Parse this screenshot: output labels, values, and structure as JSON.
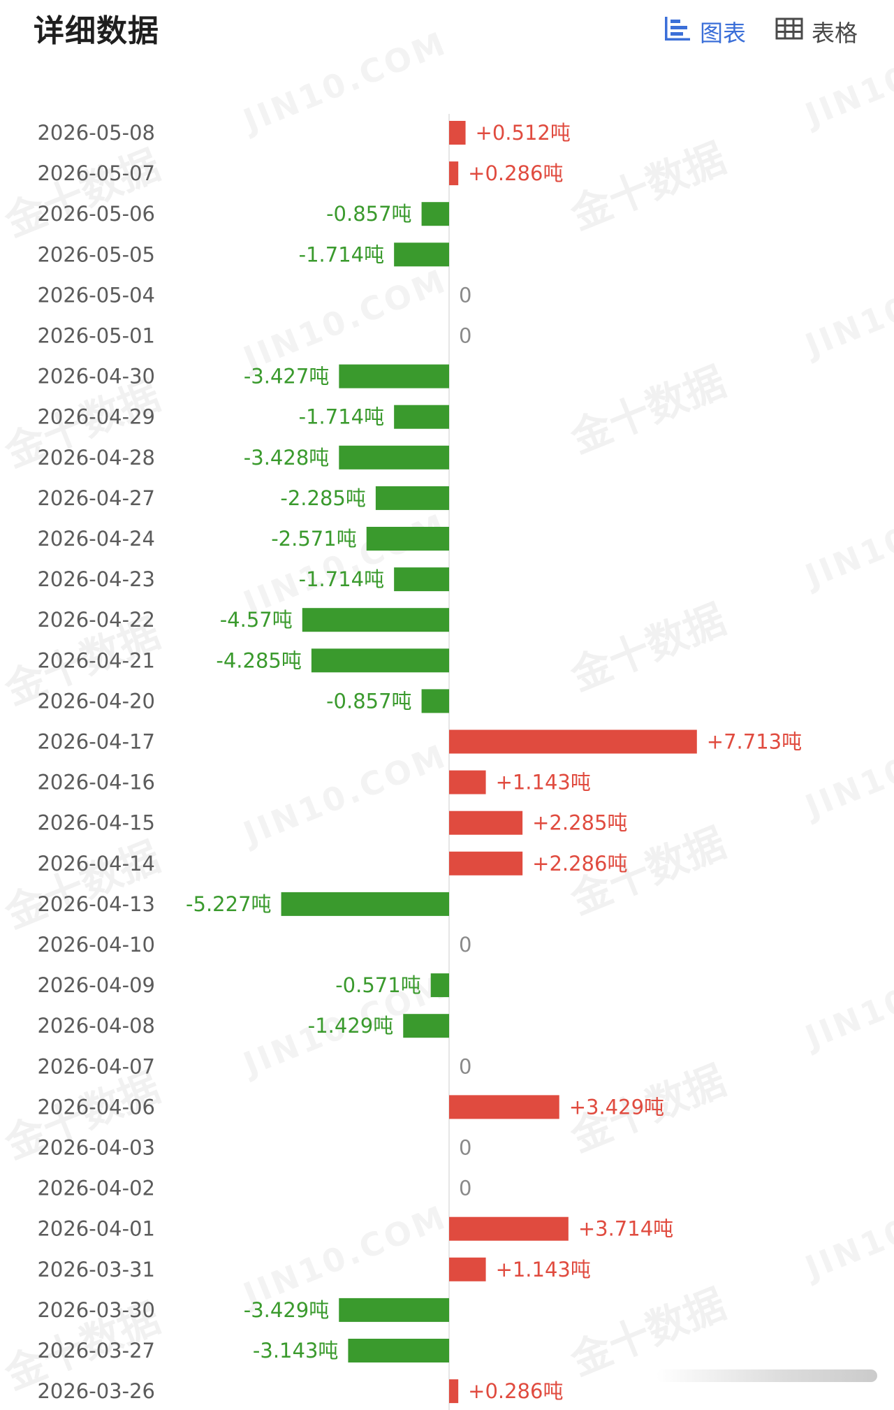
{
  "header": {
    "title": "详细数据",
    "chart_label": "图表",
    "table_label": "表格"
  },
  "colors": {
    "positive": "#e04b3f",
    "negative": "#3a9a2d",
    "axis": "#e6e6e6",
    "date_text": "#5b5b5b",
    "zero_text": "#8a8a8a",
    "accent": "#3b6fd8"
  },
  "watermarks": {
    "domain": "JIN10.COM",
    "brand": "金十数据",
    "short": "JIN10"
  },
  "chart_data": {
    "type": "bar",
    "orientation": "horizontal",
    "unit": "吨",
    "xlim": [
      -8,
      8
    ],
    "categories": [
      "2026-05-08",
      "2026-05-07",
      "2026-05-06",
      "2026-05-05",
      "2026-05-04",
      "2026-05-01",
      "2026-04-30",
      "2026-04-29",
      "2026-04-28",
      "2026-04-27",
      "2026-04-24",
      "2026-04-23",
      "2026-04-22",
      "2026-04-21",
      "2026-04-20",
      "2026-04-17",
      "2026-04-16",
      "2026-04-15",
      "2026-04-14",
      "2026-04-13",
      "2026-04-10",
      "2026-04-09",
      "2026-04-08",
      "2026-04-07",
      "2026-04-06",
      "2026-04-03",
      "2026-04-02",
      "2026-04-01",
      "2026-03-31",
      "2026-03-30",
      "2026-03-27",
      "2026-03-26"
    ],
    "values": [
      0.512,
      0.286,
      -0.857,
      -1.714,
      0,
      0,
      -3.427,
      -1.714,
      -3.428,
      -2.285,
      -2.571,
      -1.714,
      -4.57,
      -4.285,
      -0.857,
      7.713,
      1.143,
      2.285,
      2.286,
      -5.227,
      0,
      -0.571,
      -1.429,
      0,
      3.429,
      0,
      0,
      3.714,
      1.143,
      -3.429,
      -3.143,
      0.286
    ],
    "labels": [
      "+0.512吨",
      "+0.286吨",
      "-0.857吨",
      "-1.714吨",
      "0",
      "0",
      "-3.427吨",
      "-1.714吨",
      "-3.428吨",
      "-2.285吨",
      "-2.571吨",
      "-1.714吨",
      "-4.57吨",
      "-4.285吨",
      "-0.857吨",
      "+7.713吨",
      "+1.143吨",
      "+2.285吨",
      "+2.286吨",
      "-5.227吨",
      "0",
      "-0.571吨",
      "-1.429吨",
      "0",
      "+3.429吨",
      "0",
      "0",
      "+3.714吨",
      "+1.143吨",
      "-3.429吨",
      "-3.143吨",
      "+0.286吨"
    ]
  }
}
